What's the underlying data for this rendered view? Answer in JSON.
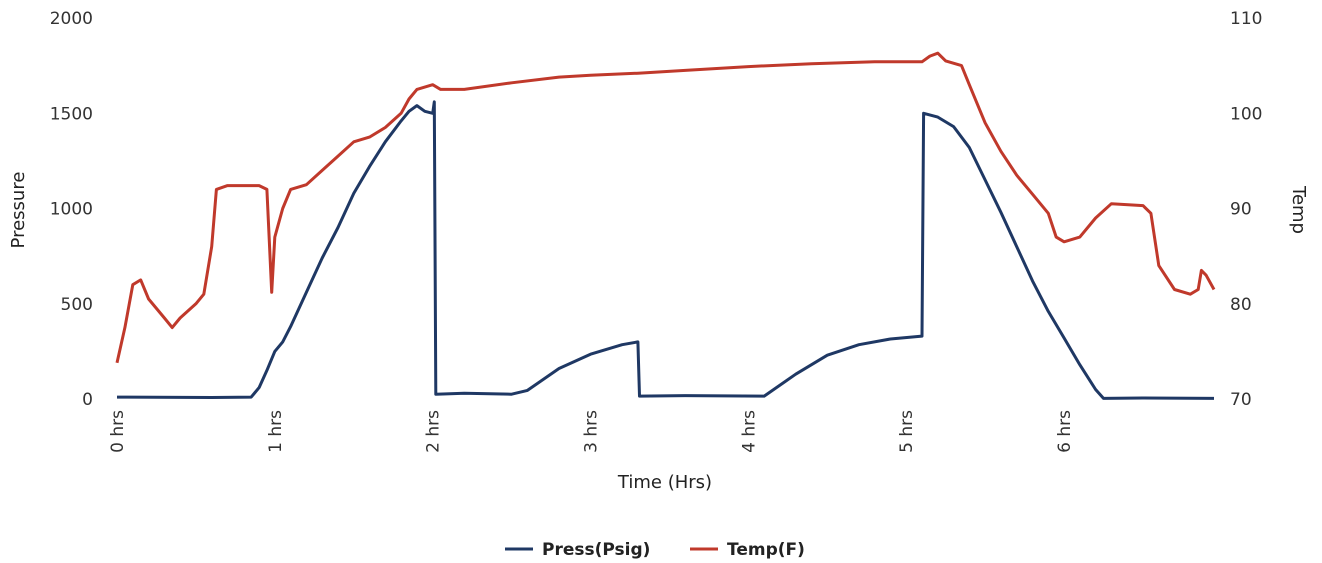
{
  "chart_data": {
    "type": "line",
    "xlabel": "Time (Hrs)",
    "ylabel": "Pressure",
    "ylabel_right": "Temp",
    "x_ticks": [
      {
        "x": 0,
        "label": "0 hrs"
      },
      {
        "x": 1,
        "label": "1 hrs"
      },
      {
        "x": 2,
        "label": "2 hrs"
      },
      {
        "x": 3,
        "label": "3 hrs"
      },
      {
        "x": 4,
        "label": "4 hrs"
      },
      {
        "x": 5,
        "label": "5 hrs"
      },
      {
        "x": 6,
        "label": "6 hrs"
      }
    ],
    "xlim": [
      0,
      6.95
    ],
    "ylim": [
      0,
      2000
    ],
    "ylim_right": [
      70,
      110
    ],
    "y_ticks": [
      0,
      500,
      1000,
      1500,
      2000
    ],
    "y_ticks_right": [
      70,
      80,
      90,
      100,
      110
    ],
    "grid": false,
    "legend_position": "bottom-center",
    "series": [
      {
        "name": "Press(Psig)",
        "color": "#1f3864",
        "axis": "left",
        "points": [
          [
            0.0,
            10
          ],
          [
            0.6,
            8
          ],
          [
            0.85,
            10
          ],
          [
            0.9,
            60
          ],
          [
            0.95,
            150
          ],
          [
            1.0,
            250
          ],
          [
            1.05,
            300
          ],
          [
            1.1,
            380
          ],
          [
            1.2,
            560
          ],
          [
            1.3,
            740
          ],
          [
            1.4,
            900
          ],
          [
            1.5,
            1080
          ],
          [
            1.6,
            1220
          ],
          [
            1.7,
            1350
          ],
          [
            1.8,
            1460
          ],
          [
            1.85,
            1510
          ],
          [
            1.9,
            1540
          ],
          [
            1.95,
            1510
          ],
          [
            2.0,
            1500
          ],
          [
            2.01,
            1560
          ],
          [
            2.02,
            25
          ],
          [
            2.2,
            30
          ],
          [
            2.5,
            25
          ],
          [
            2.6,
            45
          ],
          [
            2.8,
            160
          ],
          [
            3.0,
            235
          ],
          [
            3.2,
            285
          ],
          [
            3.3,
            300
          ],
          [
            3.31,
            15
          ],
          [
            3.6,
            18
          ],
          [
            4.1,
            15
          ],
          [
            4.3,
            130
          ],
          [
            4.5,
            230
          ],
          [
            4.7,
            285
          ],
          [
            4.9,
            315
          ],
          [
            5.1,
            330
          ],
          [
            5.11,
            1500
          ],
          [
            5.2,
            1480
          ],
          [
            5.3,
            1430
          ],
          [
            5.4,
            1320
          ],
          [
            5.5,
            1150
          ],
          [
            5.6,
            980
          ],
          [
            5.7,
            800
          ],
          [
            5.8,
            620
          ],
          [
            5.9,
            460
          ],
          [
            6.0,
            320
          ],
          [
            6.1,
            180
          ],
          [
            6.2,
            50
          ],
          [
            6.25,
            3
          ],
          [
            6.5,
            5
          ],
          [
            6.95,
            3
          ]
        ]
      },
      {
        "name": "Temp(F)",
        "color": "#c0392b",
        "axis": "right",
        "points": [
          [
            0.0,
            73.8
          ],
          [
            0.05,
            77.5
          ],
          [
            0.1,
            82.0
          ],
          [
            0.15,
            82.5
          ],
          [
            0.2,
            80.5
          ],
          [
            0.3,
            78.5
          ],
          [
            0.35,
            77.5
          ],
          [
            0.4,
            78.5
          ],
          [
            0.5,
            80.0
          ],
          [
            0.55,
            81.0
          ],
          [
            0.6,
            86.0
          ],
          [
            0.63,
            92.0
          ],
          [
            0.7,
            92.4
          ],
          [
            0.9,
            92.4
          ],
          [
            0.95,
            92.0
          ],
          [
            0.98,
            81.2
          ],
          [
            1.0,
            87.0
          ],
          [
            1.05,
            90.0
          ],
          [
            1.1,
            92.0
          ],
          [
            1.2,
            92.5
          ],
          [
            1.3,
            94.0
          ],
          [
            1.4,
            95.5
          ],
          [
            1.5,
            97.0
          ],
          [
            1.6,
            97.5
          ],
          [
            1.7,
            98.5
          ],
          [
            1.8,
            100.0
          ],
          [
            1.85,
            101.5
          ],
          [
            1.9,
            102.5
          ],
          [
            2.0,
            103.0
          ],
          [
            2.05,
            102.5
          ],
          [
            2.2,
            102.5
          ],
          [
            2.5,
            103.2
          ],
          [
            2.8,
            103.8
          ],
          [
            3.0,
            104.0
          ],
          [
            3.3,
            104.2
          ],
          [
            3.6,
            104.5
          ],
          [
            4.0,
            104.9
          ],
          [
            4.4,
            105.2
          ],
          [
            4.8,
            105.4
          ],
          [
            5.1,
            105.4
          ],
          [
            5.15,
            106.0
          ],
          [
            5.2,
            106.3
          ],
          [
            5.25,
            105.5
          ],
          [
            5.35,
            105.0
          ],
          [
            5.4,
            103.0
          ],
          [
            5.5,
            99.0
          ],
          [
            5.6,
            96.0
          ],
          [
            5.7,
            93.5
          ],
          [
            5.8,
            91.5
          ],
          [
            5.9,
            89.5
          ],
          [
            5.95,
            87.0
          ],
          [
            6.0,
            86.5
          ],
          [
            6.1,
            87.0
          ],
          [
            6.2,
            89.0
          ],
          [
            6.3,
            90.5
          ],
          [
            6.5,
            90.3
          ],
          [
            6.55,
            89.5
          ],
          [
            6.6,
            84.0
          ],
          [
            6.7,
            81.5
          ],
          [
            6.8,
            81.0
          ],
          [
            6.85,
            81.5
          ],
          [
            6.87,
            83.5
          ],
          [
            6.9,
            83.0
          ],
          [
            6.95,
            81.5
          ]
        ]
      }
    ]
  }
}
